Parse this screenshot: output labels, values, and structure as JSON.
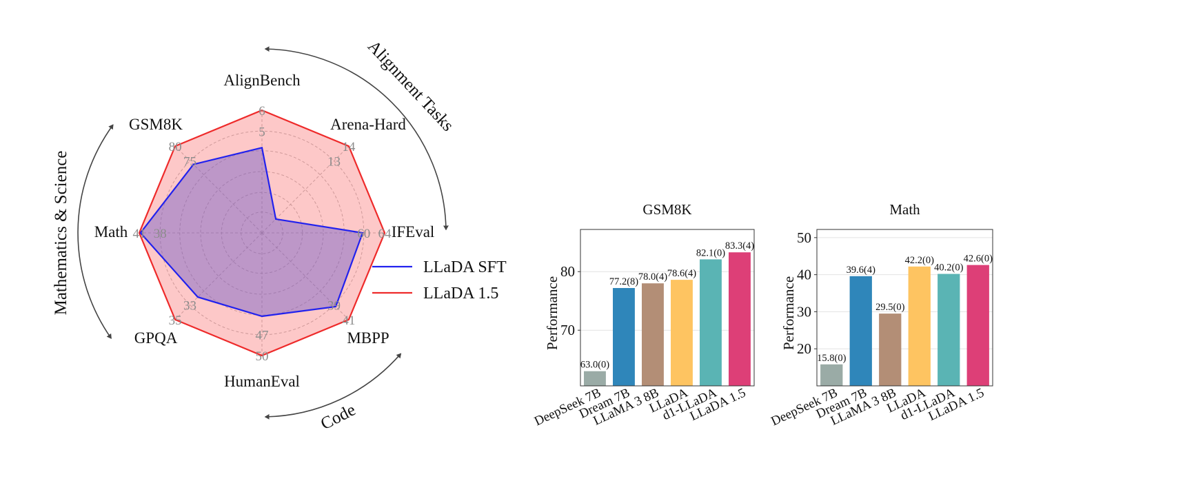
{
  "chart_data": [
    {
      "type": "radar",
      "axes": [
        "AlignBench",
        "Arena-Hard",
        "IFEval",
        "MBPP",
        "HumanEval",
        "GPQA",
        "Math",
        "GSM8K"
      ],
      "rings": [
        [
          "5",
          "6"
        ],
        [
          "13",
          "14"
        ],
        [
          "60",
          "64"
        ],
        [
          "39",
          "41"
        ],
        [
          "47",
          "50"
        ],
        [
          "33",
          "35"
        ],
        [
          "38",
          "41"
        ],
        [
          "75",
          "80"
        ]
      ],
      "series": [
        {
          "name": "LLaDA SFT",
          "color": "#2121ee",
          "fill": "rgba(110,90,200,0.45)",
          "values": [
            0.695,
            0.16,
            0.82,
            0.85,
            0.68,
            0.74,
            0.99,
            0.79
          ]
        },
        {
          "name": "LLaDA 1.5",
          "color": "#ee2a2a",
          "fill": "rgba(250,125,125,0.42)",
          "values": [
            1.0,
            1.0,
            1.0,
            1.0,
            1.0,
            1.0,
            1.0,
            1.0
          ]
        }
      ],
      "legend": {
        "position": "right"
      },
      "groups": [
        {
          "label": "Alignment Tasks"
        },
        {
          "label": "Mathematics & Science"
        },
        {
          "label": "Code"
        }
      ]
    },
    {
      "type": "bar",
      "title": "GSM8K",
      "ylabel": "Performance",
      "categories": [
        "DeepSeek 7B",
        "Dream 7B",
        "LLaMA 3 8B",
        "LLaDA",
        "d1-LLaDA",
        "LLaDA 1.5"
      ],
      "values": [
        63.0,
        77.2,
        78.0,
        78.6,
        82.1,
        83.3
      ],
      "labels": [
        "63.0(0)",
        "77.2(8)",
        "78.0(4)",
        "78.6(4)",
        "82.1(0)",
        "83.3(4)"
      ],
      "colors": [
        "#9aaba6",
        "#2f86ba",
        "#b38e76",
        "#fec461",
        "#5ab4b4",
        "#dd3f77"
      ],
      "ylim": [
        60.5,
        87.2
      ],
      "yticks": [
        70,
        80
      ],
      "grid": true
    },
    {
      "type": "bar",
      "title": "Math",
      "ylabel": "Performance",
      "categories": [
        "DeepSeek 7B",
        "Dream 7B",
        "LLaMA 3 8B",
        "LLaDA",
        "d1-LLaDA",
        "LLaDA 1.5"
      ],
      "values": [
        15.8,
        39.6,
        29.5,
        42.2,
        40.2,
        42.6
      ],
      "labels": [
        "15.8(0)",
        "39.6(4)",
        "29.5(0)",
        "42.2(0)",
        "40.2(0)",
        "42.6(0)"
      ],
      "colors": [
        "#9aaba6",
        "#2f86ba",
        "#b38e76",
        "#fec461",
        "#5ab4b4",
        "#dd3f77"
      ],
      "ylim": [
        10.0,
        52.2
      ],
      "yticks": [
        20,
        30,
        40,
        50
      ],
      "grid": true
    }
  ]
}
